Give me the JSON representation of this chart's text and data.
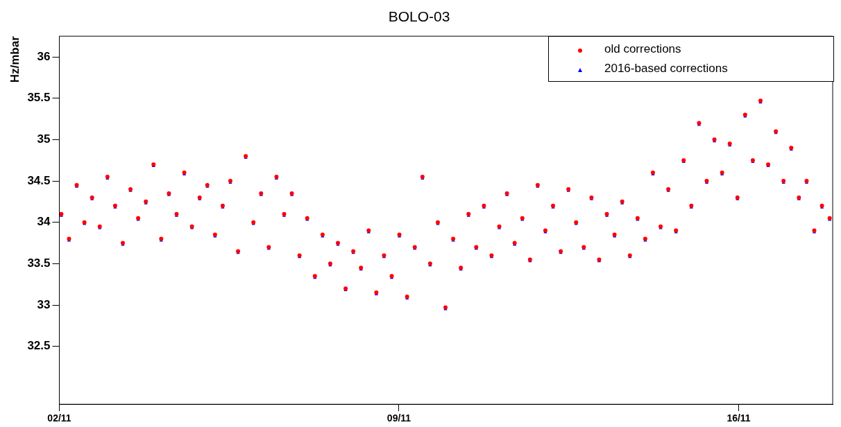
{
  "chart_data": {
    "type": "scatter",
    "title": "BOLO-03",
    "ylabel": "Hz/mbar",
    "x": [
      "--11-02T01:00",
      "--11-02T04:48",
      "--11-02T08:36",
      "--11-02T12:24",
      "--11-02T16:12",
      "--11-02T20:00",
      "--11-02T23:48",
      "--11-03T03:36",
      "--11-03T07:24",
      "--11-03T11:12",
      "--11-03T15:00",
      "--11-03T18:48",
      "--11-03T22:36",
      "--11-04T02:24",
      "--11-04T06:12",
      "--11-04T10:00",
      "--11-04T13:48",
      "--11-04T17:36",
      "--11-04T21:24",
      "--11-05T01:12",
      "--11-05T05:00",
      "--11-05T08:48",
      "--11-05T12:36",
      "--11-05T16:24",
      "--11-05T20:12",
      "--11-06T00:00",
      "--11-06T03:48",
      "--11-06T07:36",
      "--11-06T11:24",
      "--11-06T15:12",
      "--11-06T19:00",
      "--11-06T22:48",
      "--11-07T02:36",
      "--11-07T06:24",
      "--11-07T10:12",
      "--11-07T14:00",
      "--11-07T17:48",
      "--11-07T21:36",
      "--11-08T01:24",
      "--11-08T05:12",
      "--11-08T09:00",
      "--11-08T12:48",
      "--11-08T16:36",
      "--11-08T20:24",
      "--11-09T00:12",
      "--11-09T04:00",
      "--11-09T07:48",
      "--11-09T11:36",
      "--11-09T15:24",
      "--11-09T19:12",
      "--11-09T23:00",
      "--11-10T02:48",
      "--11-10T06:36",
      "--11-10T10:24",
      "--11-10T14:12",
      "--11-10T18:00",
      "--11-10T21:48",
      "--11-11T01:36",
      "--11-11T05:24",
      "--11-11T09:12",
      "--11-11T13:00",
      "--11-11T16:48",
      "--11-11T20:36",
      "--11-12T00:24",
      "--11-12T04:12",
      "--11-12T08:00",
      "--11-12T11:48",
      "--11-12T15:36",
      "--11-12T19:24",
      "--11-12T23:12",
      "--11-13T03:00",
      "--11-13T06:48",
      "--11-13T10:36",
      "--11-13T14:24",
      "--11-13T18:12",
      "--11-13T22:00",
      "--11-14T01:48",
      "--11-14T05:36",
      "--11-14T09:24",
      "--11-14T13:12",
      "--11-14T17:00",
      "--11-14T20:48",
      "--11-15T00:36",
      "--11-15T04:24",
      "--11-15T08:12",
      "--11-15T12:00",
      "--11-15T15:48",
      "--11-15T19:36",
      "--11-15T23:24",
      "--11-16T03:12",
      "--11-16T07:00",
      "--11-16T10:48",
      "--11-16T14:36",
      "--11-16T18:24",
      "--11-16T22:12",
      "--11-17T02:00",
      "--11-17T05:48",
      "--11-17T09:36",
      "--11-17T13:24",
      "--11-17T17:12",
      "--11-17T21:00"
    ],
    "series": [
      {
        "name": "old corrections",
        "color": "#ff0000",
        "marker": "circle",
        "values": [
          34.1,
          33.8,
          34.45,
          34.0,
          34.3,
          33.95,
          34.55,
          34.2,
          33.75,
          34.4,
          34.05,
          34.25,
          34.7,
          33.8,
          34.35,
          34.1,
          34.6,
          33.95,
          34.3,
          34.45,
          33.85,
          34.2,
          34.5,
          33.65,
          34.8,
          34.0,
          34.35,
          33.7,
          34.55,
          34.1,
          34.35,
          33.6,
          34.05,
          33.35,
          33.85,
          33.5,
          33.75,
          33.2,
          33.65,
          33.45,
          33.9,
          33.15,
          33.6,
          33.35,
          33.85,
          33.1,
          33.7,
          34.55,
          33.5,
          34.0,
          32.97,
          33.8,
          33.45,
          34.1,
          33.7,
          34.2,
          33.6,
          33.95,
          34.35,
          33.75,
          34.05,
          33.55,
          34.45,
          33.9,
          34.2,
          33.65,
          34.4,
          34.0,
          33.7,
          34.3,
          33.55,
          34.1,
          33.85,
          34.25,
          33.6,
          34.05,
          33.8,
          34.6,
          33.95,
          34.4,
          33.9,
          34.75,
          34.2,
          35.2,
          34.5,
          35.0,
          34.6,
          34.95,
          34.3,
          35.3,
          34.75,
          35.47,
          34.7,
          35.1,
          34.5,
          34.9,
          34.3,
          34.5,
          33.9,
          34.2,
          34.05
        ]
      },
      {
        "name": "2016-based corrections",
        "color": "#0000ff",
        "marker": "triangle",
        "values": [
          34.08,
          33.78,
          34.43,
          33.98,
          34.28,
          33.93,
          34.53,
          34.18,
          33.73,
          34.38,
          34.03,
          34.23,
          34.68,
          33.78,
          34.33,
          34.08,
          34.58,
          33.93,
          34.28,
          34.43,
          33.83,
          34.18,
          34.48,
          33.63,
          34.78,
          33.98,
          34.33,
          33.68,
          34.53,
          34.08,
          34.33,
          33.58,
          34.03,
          33.33,
          33.83,
          33.48,
          33.73,
          33.18,
          33.63,
          33.43,
          33.88,
          33.13,
          33.58,
          33.33,
          33.83,
          33.08,
          33.68,
          34.53,
          33.48,
          33.98,
          32.95,
          33.78,
          33.43,
          34.08,
          33.68,
          34.18,
          33.58,
          33.93,
          34.33,
          33.73,
          34.03,
          33.53,
          34.43,
          33.88,
          34.18,
          33.63,
          34.38,
          33.98,
          33.68,
          34.28,
          33.53,
          34.08,
          33.83,
          34.23,
          33.58,
          34.03,
          33.78,
          34.58,
          33.93,
          34.38,
          33.88,
          34.73,
          34.18,
          35.18,
          34.48,
          34.98,
          34.58,
          34.93,
          34.28,
          35.28,
          34.73,
          35.45,
          34.68,
          35.08,
          34.48,
          34.88,
          34.28,
          34.48,
          33.88,
          34.18,
          34.03
        ]
      }
    ],
    "xlim": [
      "--11-02",
      "--11-17T22:30"
    ],
    "xticks": [
      {
        "value": "--11-02",
        "label": "02/11"
      },
      {
        "value": "--11-09",
        "label": "09/11"
      },
      {
        "value": "--11-16",
        "label": "16/11"
      }
    ],
    "ylim": [
      31.8,
      36.25
    ],
    "yticks": [
      32.5,
      33,
      33.5,
      34,
      34.5,
      35,
      35.5,
      36
    ],
    "grid": false,
    "legend": "top right"
  }
}
